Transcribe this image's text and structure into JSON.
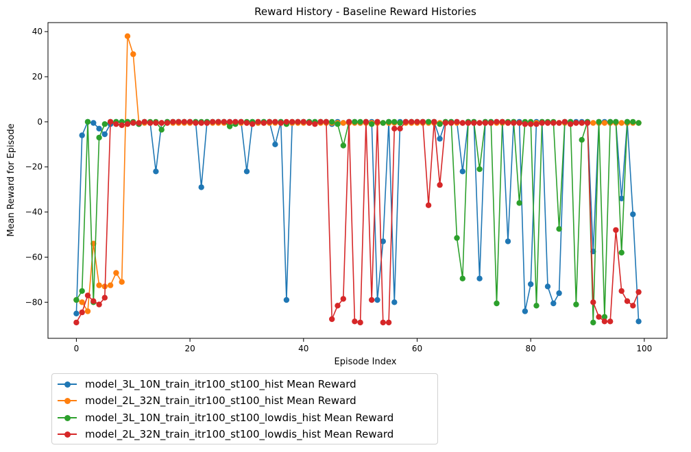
{
  "chart_data": {
    "type": "line",
    "title": "Reward History - Baseline Reward Histories",
    "xlabel": "Episode Index",
    "ylabel": "Mean Reward for Episode",
    "xlim": [
      -5,
      104
    ],
    "ylim": [
      -96,
      44
    ],
    "xticks": [
      0,
      20,
      40,
      60,
      80,
      100
    ],
    "yticks": [
      40,
      20,
      0,
      -20,
      -40,
      -60,
      -80
    ],
    "grid": false,
    "legend_position": "below-left",
    "series": [
      {
        "name": "model_3L_10N_train_itr100_st100_hist Mean Reward",
        "color": "#1f77b4",
        "x": [
          0,
          1,
          2,
          3,
          4,
          5,
          6,
          7,
          8,
          9,
          10,
          11,
          12,
          13,
          14,
          15,
          16,
          17,
          18,
          19,
          20,
          21,
          22,
          23,
          24,
          25,
          26,
          27,
          28,
          29,
          30,
          31,
          32,
          33,
          34,
          35,
          36,
          37,
          38,
          39,
          40,
          41,
          42,
          43,
          44,
          45,
          46,
          47,
          48,
          49,
          50,
          51,
          52,
          53,
          54,
          55,
          56,
          57,
          58,
          59,
          60,
          61,
          62,
          63,
          64,
          65,
          66,
          67,
          68,
          69,
          70,
          71,
          72,
          73,
          74,
          75,
          76,
          77,
          78,
          79,
          80,
          81,
          82,
          83,
          84,
          85,
          86,
          87,
          88,
          89,
          90,
          91,
          92,
          93,
          94,
          95,
          96,
          97,
          98,
          99
        ],
        "values": [
          -85,
          -6,
          0,
          -0.5,
          -3,
          -5.5,
          -1,
          0,
          0,
          0,
          -0.5,
          -1,
          0,
          -0.5,
          -22,
          -0.5,
          0,
          0,
          0,
          0,
          0,
          0,
          -29,
          0,
          0,
          0,
          0,
          0,
          0,
          0,
          -22,
          0,
          -0.5,
          0,
          0,
          -10,
          0,
          -79,
          -0.5,
          0,
          0,
          0,
          0,
          0,
          0,
          -1,
          0,
          -0.5,
          0,
          0,
          -0.5,
          0,
          0,
          -79,
          -53,
          0,
          -80,
          0,
          0,
          0,
          0,
          0,
          0,
          0,
          -7.5,
          0,
          0,
          0,
          -22,
          0,
          0,
          -69.5,
          0,
          0,
          0,
          0,
          -53,
          0,
          0,
          -84,
          -72,
          0,
          0,
          -73,
          -80.5,
          -76,
          0,
          0,
          0,
          0,
          0,
          -57.5,
          0,
          0,
          0,
          0,
          -34,
          0,
          -41,
          -88.5
        ]
      },
      {
        "name": "model_2L_32N_train_itr100_st100_hist Mean Reward",
        "color": "#ff7f0e",
        "x": [
          0,
          1,
          2,
          3,
          4,
          5,
          6,
          7,
          8,
          9,
          10,
          11,
          12,
          13,
          14,
          15,
          16,
          17,
          18,
          19,
          20,
          21,
          22,
          23,
          24,
          25,
          26,
          27,
          28,
          29,
          30,
          31,
          32,
          33,
          34,
          35,
          36,
          37,
          38,
          39,
          40,
          41,
          42,
          43,
          44,
          45,
          46,
          47,
          48,
          49,
          50,
          51,
          52,
          53,
          54,
          55,
          56,
          57,
          58,
          59,
          60,
          61,
          62,
          63,
          64,
          65,
          66,
          67,
          68,
          69,
          70,
          71,
          72,
          73,
          74,
          75,
          76,
          77,
          78,
          79,
          80,
          81,
          82,
          83,
          84,
          85,
          86,
          87,
          88,
          89,
          90,
          91,
          92,
          93,
          94,
          95,
          96,
          97,
          98,
          99
        ],
        "values": [
          -79,
          -80,
          -84,
          -54,
          -72.5,
          -73,
          -72.5,
          -67,
          -71,
          38,
          30,
          -0.5,
          -0.5,
          -0.5,
          -0.5,
          -0.5,
          -0.5,
          -0.5,
          -0.5,
          -0.5,
          -0.5,
          -0.5,
          -0.5,
          -0.5,
          -0.5,
          -0.5,
          -0.5,
          -0.5,
          -0.5,
          -0.5,
          -0.5,
          -0.5,
          -0.5,
          -0.5,
          -0.5,
          -0.5,
          -0.5,
          -0.5,
          -0.5,
          -0.5,
          -0.5,
          -0.5,
          -0.5,
          -0.5,
          -0.5,
          -0.5,
          -0.5,
          -0.5,
          -0.5,
          -0.5,
          -0.5,
          -0.5,
          -0.5,
          -0.5,
          -0.5,
          -0.5,
          -0.5,
          -0.5,
          -0.5,
          -0.5,
          -0.5,
          -0.5,
          -0.5,
          -0.5,
          -0.5,
          -0.5,
          -0.5,
          -0.5,
          -0.5,
          -0.5,
          -0.5,
          -0.5,
          -0.5,
          -0.5,
          -0.5,
          -0.5,
          -0.5,
          -0.5,
          -0.5,
          -0.5,
          -0.5,
          -0.5,
          -0.5,
          -0.5,
          -0.5,
          -0.5,
          -0.5,
          -0.5,
          -0.5,
          -0.5,
          -0.5,
          -0.5,
          -0.5,
          -0.5,
          -0.5,
          -0.5,
          -0.5,
          -0.5,
          -0.5,
          -0.5
        ]
      },
      {
        "name": "model_3L_10N_train_itr100_st100_lowdis_hist Mean Reward",
        "color": "#2ca02c",
        "x": [
          0,
          1,
          2,
          3,
          4,
          5,
          6,
          7,
          8,
          9,
          10,
          11,
          12,
          13,
          14,
          15,
          16,
          17,
          18,
          19,
          20,
          21,
          22,
          23,
          24,
          25,
          26,
          27,
          28,
          29,
          30,
          31,
          32,
          33,
          34,
          35,
          36,
          37,
          38,
          39,
          40,
          41,
          42,
          43,
          44,
          45,
          46,
          47,
          48,
          49,
          50,
          51,
          52,
          53,
          54,
          55,
          56,
          57,
          58,
          59,
          60,
          61,
          62,
          63,
          64,
          65,
          66,
          67,
          68,
          69,
          70,
          71,
          72,
          73,
          74,
          75,
          76,
          77,
          78,
          79,
          80,
          81,
          82,
          83,
          84,
          85,
          86,
          87,
          88,
          89,
          90,
          91,
          92,
          93,
          94,
          95,
          96,
          97,
          98,
          99
        ],
        "values": [
          -79,
          -75,
          0,
          -80,
          -7,
          -1,
          0,
          0,
          0,
          0,
          0,
          -1,
          0,
          0,
          0,
          -3.5,
          0,
          0,
          0,
          0,
          0,
          0,
          0,
          0,
          0,
          0,
          0,
          -2,
          -1,
          0,
          0,
          0,
          0,
          0,
          0,
          0,
          0,
          -1,
          0,
          0,
          0,
          0,
          0,
          0,
          0,
          0,
          -1,
          -10.5,
          0,
          0,
          0,
          0,
          -1,
          0,
          -0.5,
          0,
          0,
          -0.5,
          0,
          0,
          0,
          0,
          0,
          0,
          -1,
          0,
          0,
          -51.5,
          -69.5,
          0,
          0,
          -21,
          0,
          0,
          -80.5,
          0,
          0,
          0,
          -36,
          0,
          0,
          -81.5,
          0,
          0,
          0,
          -47.5,
          0,
          0,
          -81,
          -8,
          0,
          -89,
          0,
          -86.5,
          0,
          0,
          -58,
          0,
          0,
          -0.5
        ]
      },
      {
        "name": "model_2L_32N_train_itr100_st100_lowdis_hist Mean Reward",
        "color": "#d62728",
        "x": [
          0,
          1,
          2,
          3,
          4,
          5,
          6,
          7,
          8,
          9,
          10,
          11,
          12,
          13,
          14,
          15,
          16,
          17,
          18,
          19,
          20,
          21,
          22,
          23,
          24,
          25,
          26,
          27,
          28,
          29,
          30,
          31,
          32,
          33,
          34,
          35,
          36,
          37,
          38,
          39,
          40,
          41,
          42,
          43,
          44,
          45,
          46,
          47,
          48,
          49,
          50,
          51,
          52,
          53,
          54,
          55,
          56,
          57,
          58,
          59,
          60,
          61,
          62,
          63,
          64,
          65,
          66,
          67,
          68,
          69,
          70,
          71,
          72,
          73,
          74,
          75,
          76,
          77,
          78,
          79,
          80,
          81,
          82,
          83,
          84,
          85,
          86,
          87,
          88,
          89,
          90,
          91,
          92,
          93,
          94,
          95,
          96,
          97,
          98,
          99
        ],
        "values": [
          -89,
          -84.5,
          -77,
          -79.5,
          -81,
          -78,
          0,
          -1,
          -1.5,
          -1,
          -0.5,
          -0.5,
          0,
          -0.5,
          -0.5,
          -0.5,
          -0.5,
          0,
          0,
          0,
          0,
          -0.5,
          -0.5,
          -0.5,
          0,
          0,
          0,
          0,
          0,
          0,
          -0.5,
          -1,
          0,
          -0.5,
          0,
          0,
          -0.5,
          0,
          0,
          0,
          0,
          -0.5,
          -1,
          0,
          0,
          -87.5,
          -81.5,
          -78.5,
          0,
          -88.5,
          -89,
          0,
          -79,
          0,
          -89,
          -89,
          -3,
          -3,
          0,
          0,
          0,
          0,
          -37,
          0,
          -28,
          -0.5,
          -0.5,
          0,
          -0.5,
          -0.5,
          -0.5,
          -0.5,
          -0.5,
          -0.5,
          0,
          0,
          -0.5,
          -0.5,
          -0.5,
          -1,
          -1,
          -1,
          -0.5,
          -0.5,
          -0.5,
          -0.5,
          0,
          -1,
          -0.5,
          -0.5,
          -0.5,
          -80,
          -86.5,
          -88.5,
          -88.5,
          -48,
          -75,
          -79.5,
          -81.5,
          -75.5
        ]
      }
    ]
  }
}
